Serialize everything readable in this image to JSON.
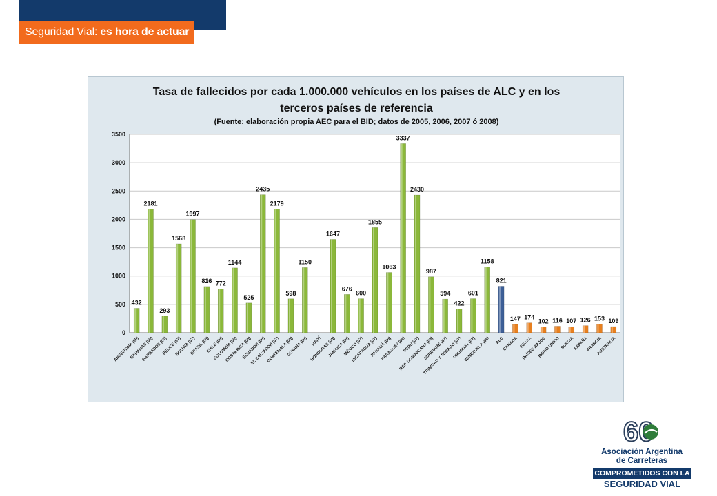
{
  "header": {
    "banner_part1": "Seguridad Vial:",
    "banner_part2": "es hora de actuar"
  },
  "colors": {
    "top_bar": "#133a6b",
    "banner": "#f26b1d",
    "bar_alc_country": "#8bb83a",
    "bar_alc_aggregate": "#3d5f97",
    "bar_reference": "#e8801f",
    "chart_background": "#dfe8ee"
  },
  "chart_data": {
    "type": "bar",
    "title_line1": "Tasa de fallecidos por cada 1.000.000 vehículos en los países de ALC y en los",
    "title_line2": "terceros países de referencia",
    "subtitle": "(Fuente: elaboración propia AEC para el BID; datos de 2005, 2006, 2007 ó 2008)",
    "xlabel": "",
    "ylabel": "",
    "ylim": [
      0,
      3500
    ],
    "yticks": [
      0,
      500,
      1000,
      1500,
      2000,
      2500,
      3000,
      3500
    ],
    "grid": true,
    "categories": [
      "ARGENTINA (08)",
      "BAHAMAS (08)",
      "BARBADOS (07)",
      "BELICE (07)",
      "BOLIVIA (07)",
      "BRASIL (05)",
      "CHILE (08)",
      "COLOMBIA (08)",
      "COSTA RICA (08)",
      "ECUADOR (06)",
      "EL SALVADOR (07)",
      "GUATEMALA (08)",
      "GUYANA (08)",
      "HAITÍ",
      "HONDURAS (08)",
      "JAMAICA (08)",
      "MÉXICO (07)",
      "NICARAGUA (07)",
      "PANAMÁ (06)",
      "PARAGUAY (08)",
      "PERÚ (07)",
      "REP. DOMINICANA (08)",
      "SURINAME (07)",
      "TRINIDAD Y TOBAGO (07)",
      "URUGUAY (07)",
      "VENEZUELA (08)",
      "ALC",
      "CANADÁ",
      "EE.UU.",
      "PAÍSES BAJOS",
      "REINO UNIDO",
      "SUECIA",
      "ESPAÑA",
      "FRANCIA",
      "AUSTRALIA"
    ],
    "values": [
      432,
      2181,
      293,
      1568,
      1997,
      816,
      772,
      1144,
      525,
      2435,
      2179,
      598,
      1150,
      null,
      1647,
      676,
      600,
      1855,
      1063,
      3337,
      2430,
      987,
      594,
      422,
      601,
      1158,
      821,
      147,
      174,
      102,
      116,
      107,
      126,
      153,
      109
    ],
    "groups": [
      "alc_country",
      "alc_country",
      "alc_country",
      "alc_country",
      "alc_country",
      "alc_country",
      "alc_country",
      "alc_country",
      "alc_country",
      "alc_country",
      "alc_country",
      "alc_country",
      "alc_country",
      "alc_country",
      "alc_country",
      "alc_country",
      "alc_country",
      "alc_country",
      "alc_country",
      "alc_country",
      "alc_country",
      "alc_country",
      "alc_country",
      "alc_country",
      "alc_country",
      "alc_country",
      "alc_aggregate",
      "reference",
      "reference",
      "reference",
      "reference",
      "reference",
      "reference",
      "reference",
      "reference"
    ]
  },
  "logo": {
    "number": "60",
    "org_line1": "Asociación Argentina",
    "org_line2": "de Carreteras",
    "slogan_line1": "COMPROMETIDOS CON LA",
    "slogan_line2": "SEGURIDAD VIAL"
  }
}
